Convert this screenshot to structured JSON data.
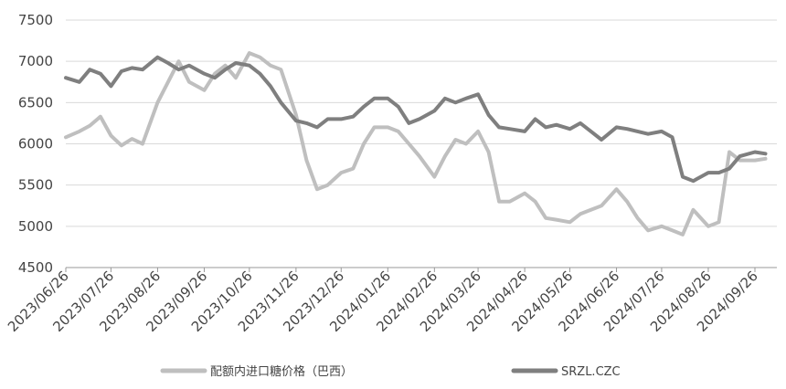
{
  "chart_data": {
    "type": "line",
    "title": "",
    "xlabel": "",
    "ylabel": "",
    "ylim": [
      4500,
      7500
    ],
    "yticks": [
      4500,
      5000,
      5500,
      6000,
      6500,
      7000,
      7500
    ],
    "grid": "horizontal",
    "legend_position": "bottom",
    "x_tick_labels": [
      "2023/06/26",
      "2023/07/26",
      "2023/08/26",
      "2023/09/26",
      "2023/10/26",
      "2023/11/26",
      "2023/12/26",
      "2024/01/26",
      "2024/02/26",
      "2024/03/26",
      "2024/04/26",
      "2024/05/26",
      "2024/06/26",
      "2024/07/26",
      "2024/08/26",
      "2024/09/26"
    ],
    "x": [
      "2023/06/26",
      "2023/07/05",
      "2023/07/12",
      "2023/07/19",
      "2023/07/26",
      "2023/08/02",
      "2023/08/09",
      "2023/08/16",
      "2023/08/26",
      "2023/09/02",
      "2023/09/09",
      "2023/09/16",
      "2023/09/26",
      "2023/10/03",
      "2023/10/10",
      "2023/10/17",
      "2023/10/26",
      "2023/11/02",
      "2023/11/09",
      "2023/11/16",
      "2023/11/26",
      "2023/12/03",
      "2023/12/10",
      "2023/12/17",
      "2023/12/26",
      "2024/01/03",
      "2024/01/10",
      "2024/01/17",
      "2024/01/26",
      "2024/02/02",
      "2024/02/09",
      "2024/02/16",
      "2024/02/26",
      "2024/03/04",
      "2024/03/11",
      "2024/03/18",
      "2024/03/26",
      "2024/04/02",
      "2024/04/09",
      "2024/04/16",
      "2024/04/26",
      "2024/05/03",
      "2024/05/10",
      "2024/05/17",
      "2024/05/26",
      "2024/06/02",
      "2024/06/09",
      "2024/06/16",
      "2024/06/26",
      "2024/07/03",
      "2024/07/10",
      "2024/07/17",
      "2024/07/26",
      "2024/08/02",
      "2024/08/09",
      "2024/08/16",
      "2024/08/26",
      "2024/09/02",
      "2024/09/09",
      "2024/09/16",
      "2024/09/26",
      "2024/10/03"
    ],
    "series": [
      {
        "name": "配额内进口糖价格（巴西）",
        "color": "#bfbfbf",
        "values": [
          6080,
          6150,
          6220,
          6330,
          6100,
          5980,
          6060,
          6000,
          6500,
          6750,
          7000,
          6750,
          6650,
          6850,
          6950,
          6800,
          7100,
          7050,
          6950,
          6900,
          6350,
          5800,
          5450,
          5500,
          5650,
          5700,
          6000,
          6200,
          6200,
          6150,
          6000,
          5850,
          5600,
          5850,
          6050,
          6000,
          6150,
          5900,
          5300,
          5300,
          5400,
          5300,
          5100,
          5080,
          5050,
          5150,
          5200,
          5250,
          5450,
          5300,
          5100,
          4950,
          5000,
          4950,
          4900,
          5200,
          5000,
          5050,
          5900,
          5800,
          5800,
          5820
        ]
      },
      {
        "name": "SRZL.CZC",
        "color": "#7f7f7f",
        "values": [
          6800,
          6750,
          6900,
          6850,
          6700,
          6880,
          6920,
          6900,
          7050,
          6980,
          6900,
          6950,
          6850,
          6800,
          6900,
          6980,
          6950,
          6850,
          6700,
          6500,
          6280,
          6250,
          6200,
          6300,
          6300,
          6330,
          6450,
          6550,
          6550,
          6450,
          6250,
          6300,
          6400,
          6550,
          6500,
          6550,
          6600,
          6350,
          6200,
          6180,
          6150,
          6300,
          6200,
          6230,
          6180,
          6250,
          6150,
          6050,
          6200,
          6180,
          6150,
          6120,
          6150,
          6080,
          5600,
          5550,
          5650,
          5650,
          5700,
          5850,
          5900,
          5880
        ]
      }
    ]
  }
}
